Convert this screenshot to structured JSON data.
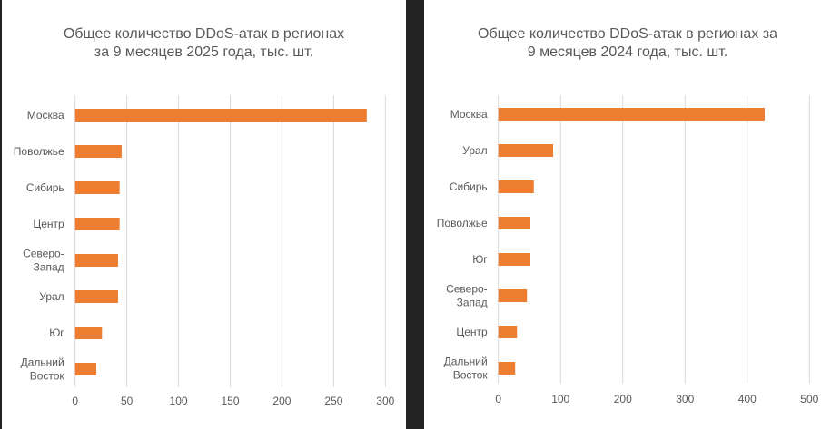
{
  "chart_data": [
    {
      "type": "bar",
      "orientation": "horizontal",
      "title_lines": [
        "Общее количество DDoS-атак в регионах",
        "за 9 месяцев 2025 года, тыс. шт."
      ],
      "categories": [
        [
          "Москва"
        ],
        [
          "Поволжье"
        ],
        [
          "Сибирь"
        ],
        [
          "Центр"
        ],
        [
          "Северо-",
          "Запад"
        ],
        [
          "Урал"
        ],
        [
          "Юг"
        ],
        [
          "Дальний",
          "Восток"
        ]
      ],
      "values": [
        282,
        45,
        43,
        43,
        41.5,
        41.5,
        26,
        20.5
      ],
      "xlim": [
        0,
        300
      ],
      "xticks": [
        "0",
        "50",
        "100",
        "150",
        "200",
        "250",
        "300"
      ],
      "grid": "vertical",
      "color": "#ED7D31"
    },
    {
      "type": "bar",
      "orientation": "horizontal",
      "title_lines": [
        "Общее количество DDoS-атак в регионах за",
        "9 месяцев 2024 года, тыс. шт."
      ],
      "categories": [
        [
          "Москва"
        ],
        [
          "Урал"
        ],
        [
          "Сибирь"
        ],
        [
          "Поволжье"
        ],
        [
          "Юг"
        ],
        [
          "Северо-",
          "Запад"
        ],
        [
          "Центр"
        ],
        [
          "Дальний",
          "Восток"
        ]
      ],
      "values": [
        428,
        88,
        57,
        51.5,
        51.5,
        46,
        30,
        27
      ],
      "xlim": [
        0,
        500
      ],
      "xticks": [
        "0",
        "100",
        "200",
        "300",
        "400",
        "500"
      ],
      "grid": "vertical",
      "color": "#ED7D31"
    }
  ]
}
